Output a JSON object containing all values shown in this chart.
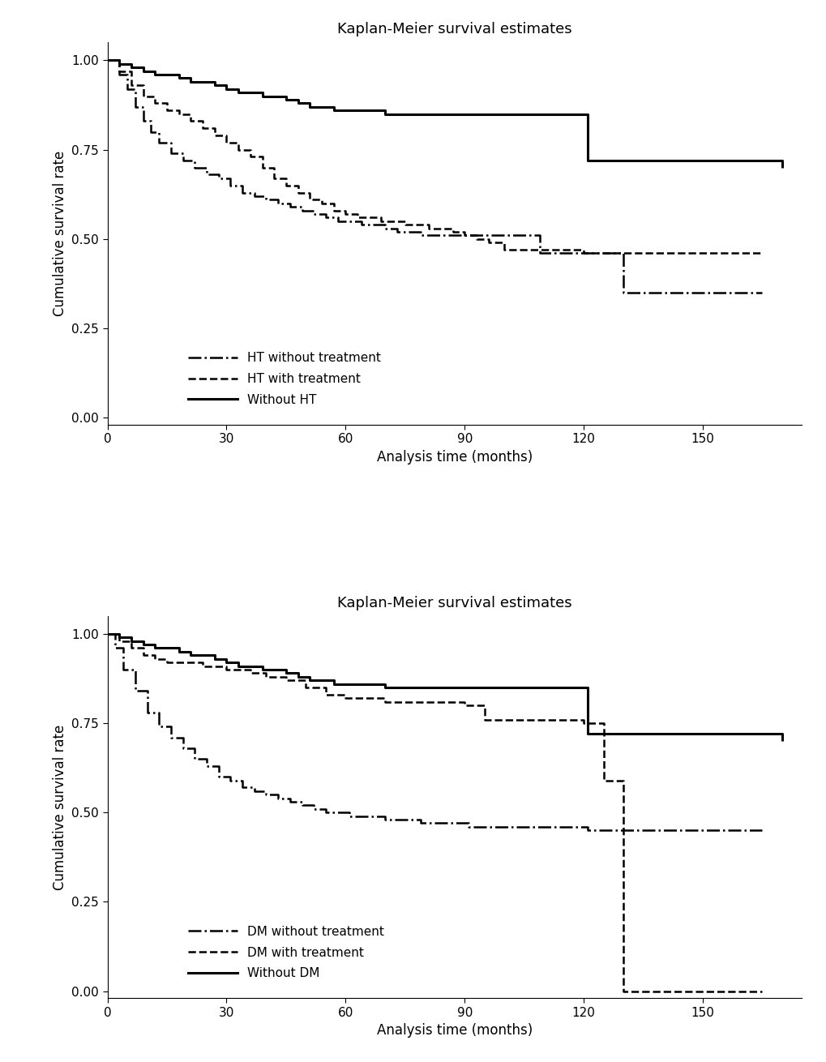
{
  "title": "Kaplan-Meier survival estimates",
  "xlabel": "Analysis time (months)",
  "ylabel": "Cumulative survival rate",
  "ylim": [
    -0.02,
    1.05
  ],
  "xlim": [
    0,
    175
  ],
  "xticks": [
    0,
    30,
    60,
    90,
    120,
    150
  ],
  "yticks": [
    0.0,
    0.25,
    0.5,
    0.75,
    1.0
  ],
  "ht_without_treatment": {
    "label": "HT without treatment",
    "linestyle": "dashdot",
    "linewidth": 1.8,
    "color": "#000000",
    "x": [
      0,
      3,
      5,
      7,
      9,
      11,
      13,
      16,
      19,
      22,
      25,
      28,
      31,
      34,
      37,
      40,
      43,
      46,
      49,
      52,
      55,
      58,
      61,
      64,
      67,
      70,
      73,
      76,
      79,
      82,
      85,
      88,
      91,
      94,
      97,
      100,
      103,
      106,
      109,
      112,
      115,
      118,
      121,
      124,
      127,
      130,
      165
    ],
    "y": [
      1.0,
      0.96,
      0.92,
      0.87,
      0.83,
      0.8,
      0.77,
      0.74,
      0.72,
      0.7,
      0.68,
      0.67,
      0.65,
      0.63,
      0.62,
      0.61,
      0.6,
      0.59,
      0.58,
      0.57,
      0.56,
      0.55,
      0.55,
      0.54,
      0.54,
      0.53,
      0.52,
      0.52,
      0.51,
      0.51,
      0.51,
      0.51,
      0.51,
      0.51,
      0.51,
      0.51,
      0.51,
      0.51,
      0.46,
      0.46,
      0.46,
      0.46,
      0.46,
      0.46,
      0.46,
      0.35,
      0.35
    ]
  },
  "ht_with_treatment": {
    "label": "HT with treatment",
    "linestyle": "dashed",
    "linewidth": 1.8,
    "color": "#000000",
    "x": [
      0,
      3,
      6,
      9,
      12,
      15,
      18,
      21,
      24,
      27,
      30,
      33,
      36,
      39,
      42,
      45,
      48,
      51,
      54,
      57,
      60,
      63,
      66,
      69,
      72,
      75,
      78,
      81,
      84,
      87,
      90,
      93,
      96,
      100,
      105,
      110,
      115,
      120,
      125,
      165
    ],
    "y": [
      1.0,
      0.97,
      0.93,
      0.9,
      0.88,
      0.86,
      0.85,
      0.83,
      0.81,
      0.79,
      0.77,
      0.75,
      0.73,
      0.7,
      0.67,
      0.65,
      0.63,
      0.61,
      0.6,
      0.58,
      0.57,
      0.56,
      0.56,
      0.55,
      0.55,
      0.54,
      0.54,
      0.53,
      0.53,
      0.52,
      0.51,
      0.5,
      0.49,
      0.47,
      0.47,
      0.47,
      0.47,
      0.46,
      0.46,
      0.46
    ]
  },
  "without_ht": {
    "label": "Without HT",
    "linestyle": "solid",
    "linewidth": 2.2,
    "color": "#000000",
    "x": [
      0,
      3,
      6,
      9,
      12,
      15,
      18,
      21,
      24,
      27,
      30,
      33,
      36,
      39,
      42,
      45,
      48,
      51,
      54,
      57,
      60,
      65,
      70,
      75,
      80,
      85,
      90,
      95,
      100,
      105,
      110,
      115,
      118,
      120,
      121,
      165,
      170
    ],
    "y": [
      1.0,
      0.99,
      0.98,
      0.97,
      0.96,
      0.96,
      0.95,
      0.94,
      0.94,
      0.93,
      0.92,
      0.91,
      0.91,
      0.9,
      0.9,
      0.89,
      0.88,
      0.87,
      0.87,
      0.86,
      0.86,
      0.86,
      0.85,
      0.85,
      0.85,
      0.85,
      0.85,
      0.85,
      0.85,
      0.85,
      0.85,
      0.85,
      0.85,
      0.85,
      0.72,
      0.72,
      0.7
    ]
  },
  "dm_without_treatment": {
    "label": "DM without treatment",
    "linestyle": "dashdot",
    "linewidth": 1.8,
    "color": "#000000",
    "x": [
      0,
      2,
      4,
      7,
      10,
      13,
      16,
      19,
      22,
      25,
      28,
      31,
      34,
      37,
      40,
      43,
      46,
      49,
      52,
      55,
      58,
      61,
      64,
      67,
      70,
      73,
      76,
      79,
      82,
      85,
      88,
      91,
      94,
      97,
      100,
      103,
      106,
      109,
      112,
      115,
      118,
      121,
      165
    ],
    "y": [
      1.0,
      0.96,
      0.9,
      0.84,
      0.78,
      0.74,
      0.71,
      0.68,
      0.65,
      0.63,
      0.6,
      0.59,
      0.57,
      0.56,
      0.55,
      0.54,
      0.53,
      0.52,
      0.51,
      0.5,
      0.5,
      0.49,
      0.49,
      0.49,
      0.48,
      0.48,
      0.48,
      0.47,
      0.47,
      0.47,
      0.47,
      0.46,
      0.46,
      0.46,
      0.46,
      0.46,
      0.46,
      0.46,
      0.46,
      0.46,
      0.46,
      0.45,
      0.45
    ]
  },
  "dm_with_treatment": {
    "label": "DM with treatment",
    "linestyle": "dashed",
    "linewidth": 1.8,
    "color": "#000000",
    "x": [
      0,
      3,
      6,
      9,
      12,
      15,
      18,
      21,
      24,
      27,
      30,
      33,
      36,
      40,
      45,
      50,
      55,
      60,
      65,
      70,
      75,
      80,
      85,
      90,
      95,
      100,
      105,
      110,
      115,
      120,
      125,
      128,
      130,
      165
    ],
    "y": [
      1.0,
      0.98,
      0.96,
      0.94,
      0.93,
      0.92,
      0.92,
      0.92,
      0.91,
      0.91,
      0.9,
      0.9,
      0.89,
      0.88,
      0.87,
      0.85,
      0.83,
      0.82,
      0.82,
      0.81,
      0.81,
      0.81,
      0.81,
      0.8,
      0.76,
      0.76,
      0.76,
      0.76,
      0.76,
      0.75,
      0.59,
      0.59,
      0.0,
      0.0
    ]
  },
  "without_dm": {
    "label": "Without DM",
    "linestyle": "solid",
    "linewidth": 2.2,
    "color": "#000000",
    "x": [
      0,
      3,
      6,
      9,
      12,
      15,
      18,
      21,
      24,
      27,
      30,
      33,
      36,
      39,
      42,
      45,
      48,
      51,
      54,
      57,
      60,
      65,
      70,
      75,
      80,
      85,
      90,
      95,
      100,
      105,
      110,
      115,
      118,
      120,
      121,
      165,
      170
    ],
    "y": [
      1.0,
      0.99,
      0.98,
      0.97,
      0.96,
      0.96,
      0.95,
      0.94,
      0.94,
      0.93,
      0.92,
      0.91,
      0.91,
      0.9,
      0.9,
      0.89,
      0.88,
      0.87,
      0.87,
      0.86,
      0.86,
      0.86,
      0.85,
      0.85,
      0.85,
      0.85,
      0.85,
      0.85,
      0.85,
      0.85,
      0.85,
      0.85,
      0.85,
      0.85,
      0.72,
      0.72,
      0.7
    ]
  },
  "background_color": "#ffffff"
}
